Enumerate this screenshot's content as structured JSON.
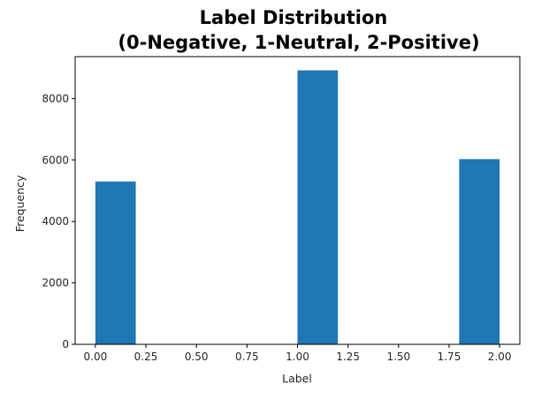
{
  "chart_data": {
    "type": "bar",
    "title_lines": [
      "Label Distribution",
      "(0-Negative, 1-Neutral, 2-Positive)"
    ],
    "xlabel": "Label",
    "ylabel": "Frequency",
    "bins": [
      {
        "x0": 0.0,
        "x1": 0.2,
        "value": 5300
      },
      {
        "x0": 0.2,
        "x1": 0.4,
        "value": 0
      },
      {
        "x0": 0.4,
        "x1": 0.6,
        "value": 0
      },
      {
        "x0": 0.6,
        "x1": 0.8,
        "value": 0
      },
      {
        "x0": 0.8,
        "x1": 1.0,
        "value": 0
      },
      {
        "x0": 1.0,
        "x1": 1.2,
        "value": 8920
      },
      {
        "x0": 1.2,
        "x1": 1.4,
        "value": 0
      },
      {
        "x0": 1.4,
        "x1": 1.6,
        "value": 0
      },
      {
        "x0": 1.6,
        "x1": 1.8,
        "value": 0
      },
      {
        "x0": 1.8,
        "x1": 2.0,
        "value": 6030
      }
    ],
    "xlim": [
      -0.1,
      2.1
    ],
    "ylim": [
      0,
      9366
    ],
    "xticks": [
      0.0,
      0.25,
      0.5,
      0.75,
      1.0,
      1.25,
      1.5,
      1.75,
      2.0
    ],
    "xtick_labels": [
      "0.00",
      "0.25",
      "0.50",
      "0.75",
      "1.00",
      "1.25",
      "1.50",
      "1.75",
      "2.00"
    ],
    "yticks": [
      0,
      2000,
      4000,
      6000,
      8000
    ],
    "ytick_labels": [
      "0",
      "2000",
      "4000",
      "6000",
      "8000"
    ],
    "bar_color": "#1f77b4",
    "grid": false,
    "legend": "none"
  }
}
